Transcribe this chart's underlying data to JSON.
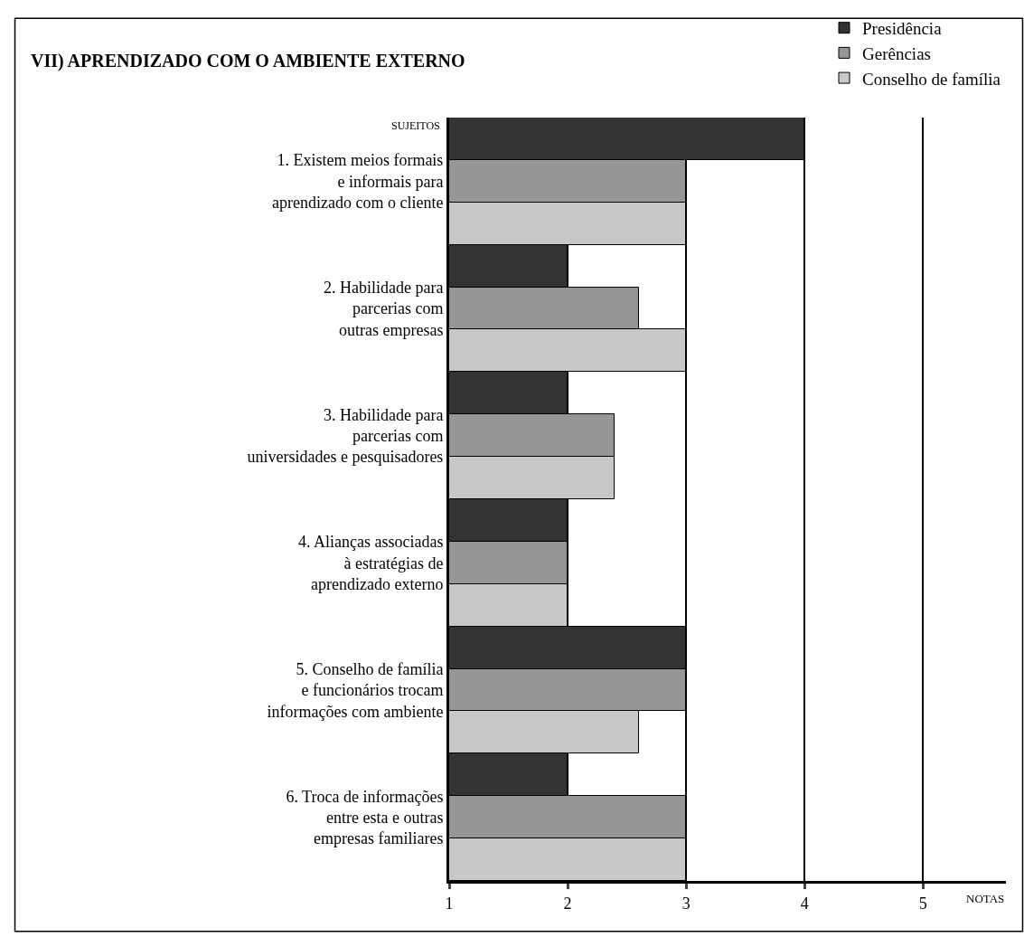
{
  "chart_data": {
    "type": "bar",
    "orientation": "horizontal",
    "title": "VII) APRENDIZADO COM O AMBIENTE EXTERNO",
    "xlabel": "NOTAS",
    "ylabel": "SUJEITOS",
    "categories": [
      "1. Existem meios formais\ne informais para\naprendizado com o cliente",
      "2. Habilidade para\nparcerias com\noutras empresas",
      "3. Habilidade para\nparcerias com\nuniversidades e pesquisadores",
      "4. Alianças associadas\nà estratégias de\naprendizado externo",
      "5. Conselho de família\ne funcionários trocam\ninformações com ambiente",
      "6. Troca de informações\nentre esta e outras\nempresas familiares"
    ],
    "series": [
      {
        "name": "Presidência",
        "color": "#333333",
        "values": [
          4,
          2,
          2,
          2,
          3,
          2
        ]
      },
      {
        "name": "Gerências",
        "color": "#969696",
        "values": [
          3,
          2.6,
          2.4,
          2,
          3,
          3
        ]
      },
      {
        "name": "Conselho de família",
        "color": "#c8c8c8",
        "values": [
          3,
          3,
          2.4,
          2,
          2.6,
          3
        ]
      }
    ],
    "xlim": [
      1,
      5.7
    ],
    "xticks": [
      1,
      2,
      3,
      4,
      5
    ],
    "grid": "x",
    "legend": "top right"
  }
}
